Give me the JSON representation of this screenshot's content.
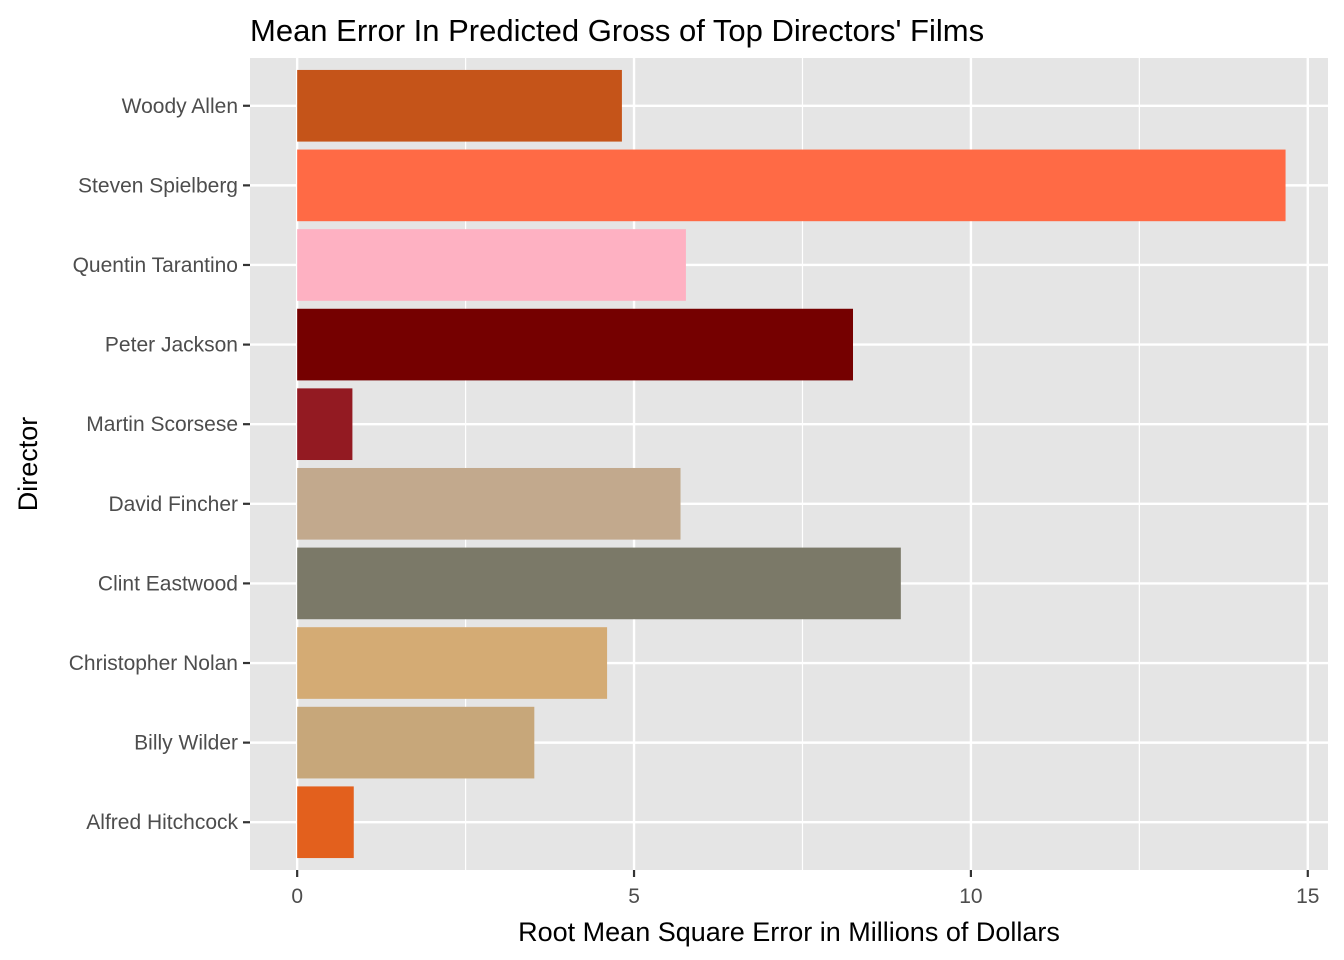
{
  "chart_data": {
    "type": "bar",
    "orientation": "horizontal",
    "title": "Mean Error In Predicted Gross of Top Directors' Films",
    "xlabel": "Root Mean Square Error in Millions of Dollars",
    "ylabel": "Director",
    "xlim": [
      -0.7,
      15.3
    ],
    "xticks": [
      0,
      5,
      10,
      15
    ],
    "xtick_labels": [
      "0",
      "5",
      "10",
      "15"
    ],
    "categories": [
      "Woody Allen",
      "Steven Spielberg",
      "Quentin Tarantino",
      "Peter Jackson",
      "Martin Scorsese",
      "David Fincher",
      "Clint Eastwood",
      "Christopher Nolan",
      "Billy Wilder",
      "Alfred Hitchcock"
    ],
    "values": [
      4.82,
      14.67,
      5.77,
      8.25,
      0.82,
      5.69,
      8.96,
      4.6,
      3.52,
      0.84
    ],
    "colors": [
      "#c55419",
      "#ff6a45",
      "#feb1c2",
      "#750000",
      "#931a22",
      "#c2a98d",
      "#7b7968",
      "#d4ab74",
      "#c7a77a",
      "#e3601d"
    ],
    "grid": true,
    "legend": "none",
    "panel_background": "#e5e5e5",
    "grid_color": "#ffffff"
  }
}
